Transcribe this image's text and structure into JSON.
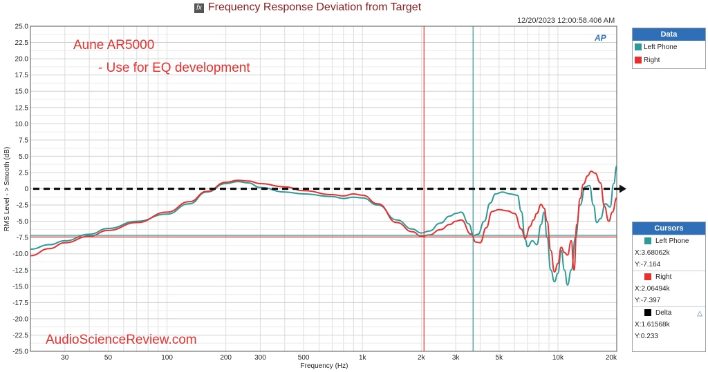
{
  "window": {
    "title": "Frequency Response Deviation from Target",
    "timestamp": "12/20/2023 12:00:58.406 AM",
    "logo_text": "AP"
  },
  "annotations": {
    "line1": "Aune AR5000",
    "line2": "- Use for EQ development",
    "watermark": "AudioScienceReview.com"
  },
  "legend_panel": {
    "title": "Data",
    "items": [
      {
        "label": "Left Phone",
        "color": "#2e9a98"
      },
      {
        "label": "Right",
        "color": "#e8302e"
      }
    ]
  },
  "cursors_panel": {
    "title": "Cursors",
    "items": [
      {
        "name": "Left Phone",
        "color": "#2e9a98",
        "x": "X:3.68062k",
        "y": "Y:-7.164"
      },
      {
        "name": "Right",
        "color": "#e8302e",
        "x": "X:2.06494k",
        "y": "Y:-7.397"
      },
      {
        "name": "Delta",
        "color": "#000000",
        "x": "X:1.61568k",
        "y": "Y:0.233"
      }
    ]
  },
  "chart_data": {
    "type": "line",
    "title": "Frequency Response Deviation from Target",
    "xlabel": "Frequency (Hz)",
    "ylabel": "RMS Level - > Smooth (dB)",
    "xscale": "log",
    "xlim": [
      20,
      20000
    ],
    "ylim": [
      -25,
      25
    ],
    "grid": true,
    "x_ticks": [
      {
        "v": 30,
        "label": "30"
      },
      {
        "v": 50,
        "label": "50"
      },
      {
        "v": 100,
        "label": "100"
      },
      {
        "v": 200,
        "label": "200"
      },
      {
        "v": 300,
        "label": "300"
      },
      {
        "v": 500,
        "label": "500"
      },
      {
        "v": 1000,
        "label": "1k"
      },
      {
        "v": 2000,
        "label": "2k"
      },
      {
        "v": 3000,
        "label": "3k"
      },
      {
        "v": 5000,
        "label": "5k"
      },
      {
        "v": 10000,
        "label": "10k"
      },
      {
        "v": 20000,
        "label": "20k"
      }
    ],
    "y_ticks": [
      {
        "v": 25,
        "label": "25.0"
      },
      {
        "v": 22.5,
        "label": "22.5"
      },
      {
        "v": 20,
        "label": "20.0"
      },
      {
        "v": 17.5,
        "label": "17.5"
      },
      {
        "v": 15,
        "label": "15.0"
      },
      {
        "v": 12.5,
        "label": "12.5"
      },
      {
        "v": 10,
        "label": "10.0"
      },
      {
        "v": 7.5,
        "label": "7.5"
      },
      {
        "v": 5,
        "label": "5.0"
      },
      {
        "v": 2.5,
        "label": "2.5"
      },
      {
        "v": 0,
        "label": "0"
      },
      {
        "v": -2.5,
        "label": "-2.5"
      },
      {
        "v": -5,
        "label": "-5.0"
      },
      {
        "v": -7.5,
        "label": "-7.5"
      },
      {
        "v": -10,
        "label": "-10.0"
      },
      {
        "v": -12.5,
        "label": "-12.5"
      },
      {
        "v": -15,
        "label": "-15.0"
      },
      {
        "v": -17.5,
        "label": "-17.5"
      },
      {
        "v": -20,
        "label": "-20.0"
      },
      {
        "v": -22.5,
        "label": "-22.5"
      },
      {
        "v": -25,
        "label": "-25.0"
      }
    ],
    "series": [
      {
        "name": "Left Phone",
        "color": "#2e9a98",
        "points": [
          [
            20,
            -9.3
          ],
          [
            25,
            -8.6
          ],
          [
            30,
            -8.0
          ],
          [
            40,
            -7.0
          ],
          [
            50,
            -6.1
          ],
          [
            70,
            -5.0
          ],
          [
            100,
            -3.9
          ],
          [
            130,
            -2.3
          ],
          [
            160,
            -0.5
          ],
          [
            200,
            0.8
          ],
          [
            230,
            1.1
          ],
          [
            260,
            0.9
          ],
          [
            300,
            0.2
          ],
          [
            400,
            -0.5
          ],
          [
            500,
            -0.8
          ],
          [
            700,
            -1.2
          ],
          [
            800,
            -1.5
          ],
          [
            900,
            -1.3
          ],
          [
            1000,
            -1.4
          ],
          [
            1200,
            -2.5
          ],
          [
            1500,
            -4.8
          ],
          [
            1800,
            -6.2
          ],
          [
            2000,
            -6.8
          ],
          [
            2200,
            -6.5
          ],
          [
            2500,
            -5.3
          ],
          [
            2800,
            -4.2
          ],
          [
            3000,
            -3.8
          ],
          [
            3200,
            -3.6
          ],
          [
            3500,
            -5.4
          ],
          [
            3700,
            -7.2
          ],
          [
            3900,
            -7.0
          ],
          [
            4200,
            -5.0
          ],
          [
            4500,
            -2.2
          ],
          [
            4800,
            -0.8
          ],
          [
            5200,
            -0.5
          ],
          [
            5700,
            -0.8
          ],
          [
            6200,
            -1.0
          ],
          [
            6500,
            -3.5
          ],
          [
            6800,
            -7.8
          ],
          [
            7000,
            -8.9
          ],
          [
            7400,
            -8.0
          ],
          [
            7800,
            -8.6
          ],
          [
            8200,
            -5.5
          ],
          [
            8500,
            -3.6
          ],
          [
            8800,
            -7.5
          ],
          [
            9200,
            -12.5
          ],
          [
            9600,
            -14.3
          ],
          [
            10000,
            -13.0
          ],
          [
            10400,
            -9.5
          ],
          [
            10800,
            -12.5
          ],
          [
            11200,
            -14.8
          ],
          [
            11700,
            -12.5
          ],
          [
            12300,
            -7.5
          ],
          [
            13000,
            -2.5
          ],
          [
            13800,
            0.3
          ],
          [
            14500,
            0.5
          ],
          [
            15200,
            -2.5
          ],
          [
            15800,
            -5.2
          ],
          [
            16500,
            -4.6
          ],
          [
            17500,
            -2.3
          ],
          [
            18500,
            -2.8
          ],
          [
            19300,
            0.8
          ],
          [
            20000,
            3.5
          ]
        ]
      },
      {
        "name": "Right",
        "color": "#e8302e",
        "points": [
          [
            20,
            -10.3
          ],
          [
            25,
            -9.2
          ],
          [
            30,
            -8.3
          ],
          [
            40,
            -7.3
          ],
          [
            50,
            -6.4
          ],
          [
            70,
            -5.2
          ],
          [
            100,
            -3.6
          ],
          [
            130,
            -2.0
          ],
          [
            160,
            -0.4
          ],
          [
            200,
            1.0
          ],
          [
            230,
            1.3
          ],
          [
            260,
            1.2
          ],
          [
            300,
            0.8
          ],
          [
            400,
            0.3
          ],
          [
            500,
            -0.3
          ],
          [
            700,
            -0.9
          ],
          [
            800,
            -1.1
          ],
          [
            900,
            -0.8
          ],
          [
            1000,
            -1.0
          ],
          [
            1200,
            -2.3
          ],
          [
            1500,
            -5.2
          ],
          [
            1800,
            -6.6
          ],
          [
            2000,
            -7.3
          ],
          [
            2200,
            -7.1
          ],
          [
            2500,
            -6.3
          ],
          [
            2800,
            -5.5
          ],
          [
            3000,
            -5.0
          ],
          [
            3200,
            -4.8
          ],
          [
            3600,
            -7.0
          ],
          [
            3800,
            -8.2
          ],
          [
            4000,
            -8.3
          ],
          [
            4300,
            -6.0
          ],
          [
            4600,
            -3.5
          ],
          [
            5000,
            -3.2
          ],
          [
            5500,
            -3.4
          ],
          [
            6000,
            -3.8
          ],
          [
            6500,
            -6.2
          ],
          [
            6800,
            -7.6
          ],
          [
            7200,
            -5.8
          ],
          [
            7500,
            -4.8
          ],
          [
            7800,
            -3.8
          ],
          [
            8200,
            -2.4
          ],
          [
            8500,
            -3.0
          ],
          [
            8800,
            -5.0
          ],
          [
            9200,
            -9.5
          ],
          [
            9600,
            -12.8
          ],
          [
            10000,
            -11.5
          ],
          [
            10400,
            -9.0
          ],
          [
            10800,
            -9.8
          ],
          [
            11200,
            -10.2
          ],
          [
            11700,
            -8.0
          ],
          [
            12100,
            -12.5
          ],
          [
            12500,
            -5.5
          ],
          [
            13000,
            -1.5
          ],
          [
            13500,
            0.7
          ],
          [
            14200,
            2.0
          ],
          [
            14800,
            2.7
          ],
          [
            15500,
            2.4
          ],
          [
            16500,
            0.9
          ],
          [
            17300,
            -2.7
          ],
          [
            18200,
            -5.0
          ],
          [
            19000,
            -3.6
          ],
          [
            20000,
            -1.4
          ]
        ]
      }
    ],
    "target_line": {
      "y": 0,
      "color": "#111111",
      "style": "dashed-arrow"
    },
    "cursors": [
      {
        "series": "Left Phone",
        "x": 3680.62,
        "y": -7.164,
        "color": "#2e9a98"
      },
      {
        "series": "Right",
        "x": 2064.94,
        "y": -7.397,
        "color": "#e8302e"
      }
    ]
  }
}
